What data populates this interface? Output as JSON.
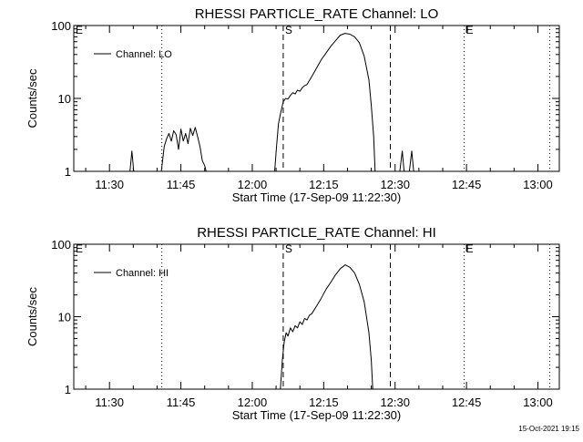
{
  "footer_timestamp": "15-Oct-2021 19:15",
  "chart_data": [
    {
      "type": "line",
      "title": "RHESSI PARTICLE_RATE Channel: LO",
      "xlabel": "Start Time (17-Sep-09 11:22:30)",
      "ylabel": "Counts/sec",
      "x_units": "minutes after 11:22:30",
      "xlim": [
        0,
        102
      ],
      "ylim": [
        1,
        100
      ],
      "y_scale": "log",
      "x_ticks": [
        {
          "x": 7.5,
          "label": "11:30"
        },
        {
          "x": 22.5,
          "label": "11:45"
        },
        {
          "x": 37.5,
          "label": "12:00"
        },
        {
          "x": 52.5,
          "label": "12:15"
        },
        {
          "x": 67.5,
          "label": "12:30"
        },
        {
          "x": 82.5,
          "label": "12:45"
        },
        {
          "x": 97.5,
          "label": "13:00"
        }
      ],
      "y_ticks": [
        {
          "y": 1,
          "label": "1"
        },
        {
          "y": 10,
          "label": "10"
        },
        {
          "y": 100,
          "label": "100"
        }
      ],
      "legend": {
        "entries": [
          "Channel: LO"
        ],
        "position": "top-left"
      },
      "markers": [
        {
          "x": 0,
          "label": "E",
          "style": "dotted"
        },
        {
          "x": 18.5,
          "label": "",
          "style": "dotted"
        },
        {
          "x": 44,
          "label": "S",
          "style": "dashed"
        },
        {
          "x": 66.5,
          "label": "",
          "style": "dashed"
        },
        {
          "x": 82,
          "label": "E",
          "style": "dotted"
        },
        {
          "x": 100,
          "label": "",
          "style": "dotted"
        }
      ],
      "series": [
        {
          "name": "Channel: LO",
          "segments": [
            [
              [
                11.8,
                1
              ],
              [
                12.2,
                1.9
              ],
              [
                12.6,
                1
              ]
            ],
            [
              [
                18.4,
                1
              ],
              [
                19,
                2.2
              ],
              [
                19.5,
                2.8
              ],
              [
                20,
                3.3
              ],
              [
                20.5,
                2.6
              ],
              [
                21,
                3.6
              ],
              [
                21.5,
                3.2
              ],
              [
                22,
                2
              ],
              [
                22.5,
                3.8
              ],
              [
                23,
                2.6
              ],
              [
                23.5,
                3.3
              ],
              [
                24,
                2.4
              ],
              [
                24.5,
                3.9
              ],
              [
                25,
                3.1
              ],
              [
                25.5,
                4
              ],
              [
                26,
                3
              ],
              [
                26.5,
                2.2
              ],
              [
                27,
                1.4
              ],
              [
                27.5,
                1.2
              ],
              [
                27.8,
                1
              ]
            ],
            [
              [
                42.2,
                1
              ],
              [
                42.6,
                2.2
              ],
              [
                43,
                4.5
              ],
              [
                43.5,
                6.5
              ],
              [
                44,
                9
              ],
              [
                44.5,
                10
              ],
              [
                45,
                9.8
              ],
              [
                45.5,
                11
              ],
              [
                46,
                12
              ],
              [
                46.5,
                11.5
              ],
              [
                47,
                13
              ],
              [
                47.5,
                12.5
              ],
              [
                48,
                14
              ],
              [
                48.5,
                15
              ],
              [
                49,
                15.5
              ],
              [
                50,
                20
              ],
              [
                51,
                26
              ],
              [
                52,
                34
              ],
              [
                53,
                42
              ],
              [
                54,
                52
              ],
              [
                55,
                62
              ],
              [
                56,
                74
              ],
              [
                57,
                78
              ],
              [
                58,
                76
              ],
              [
                59,
                70
              ],
              [
                60,
                58
              ],
              [
                61,
                38
              ],
              [
                62,
                18
              ],
              [
                62.5,
                8
              ],
              [
                63,
                3
              ],
              [
                63.3,
                1
              ]
            ],
            [
              [
                68.5,
                1
              ],
              [
                69,
                1.9
              ],
              [
                69.4,
                1
              ]
            ],
            [
              [
                70.5,
                1
              ],
              [
                71,
                1.9
              ],
              [
                71.4,
                1
              ]
            ]
          ]
        }
      ]
    },
    {
      "type": "line",
      "title": "RHESSI PARTICLE_RATE Channel: HI",
      "xlabel": "Start Time (17-Sep-09 11:22:30)",
      "ylabel": "Counts/sec",
      "x_units": "minutes after 11:22:30",
      "xlim": [
        0,
        102
      ],
      "ylim": [
        1,
        100
      ],
      "y_scale": "log",
      "x_ticks": [
        {
          "x": 7.5,
          "label": "11:30"
        },
        {
          "x": 22.5,
          "label": "11:45"
        },
        {
          "x": 37.5,
          "label": "12:00"
        },
        {
          "x": 52.5,
          "label": "12:15"
        },
        {
          "x": 67.5,
          "label": "12:30"
        },
        {
          "x": 82.5,
          "label": "12:45"
        },
        {
          "x": 97.5,
          "label": "13:00"
        }
      ],
      "y_ticks": [
        {
          "y": 1,
          "label": "1"
        },
        {
          "y": 10,
          "label": "10"
        },
        {
          "y": 100,
          "label": "100"
        }
      ],
      "legend": {
        "entries": [
          "Channel: HI"
        ],
        "position": "top-left"
      },
      "markers": [
        {
          "x": 0,
          "label": "E",
          "style": "dotted"
        },
        {
          "x": 18.5,
          "label": "",
          "style": "dotted"
        },
        {
          "x": 44,
          "label": "S",
          "style": "dashed"
        },
        {
          "x": 66.5,
          "label": "",
          "style": "dashed"
        },
        {
          "x": 82,
          "label": "E",
          "style": "dotted"
        },
        {
          "x": 100,
          "label": "",
          "style": "dotted"
        }
      ],
      "series": [
        {
          "name": "Channel: HI",
          "segments": [
            [
              [
                43.4,
                1
              ],
              [
                43.8,
                2.5
              ],
              [
                44.2,
                4.5
              ],
              [
                44.6,
                6
              ],
              [
                45,
                5.4
              ],
              [
                45.5,
                7
              ],
              [
                46,
                6.2
              ],
              [
                46.5,
                7.5
              ],
              [
                47,
                7
              ],
              [
                47.5,
                8.5
              ],
              [
                48,
                7.8
              ],
              [
                48.5,
                9.5
              ],
              [
                49,
                9
              ],
              [
                49.5,
                10.5
              ],
              [
                50,
                11
              ],
              [
                51,
                14
              ],
              [
                52,
                18
              ],
              [
                53,
                24
              ],
              [
                54,
                30
              ],
              [
                55,
                38
              ],
              [
                56,
                46
              ],
              [
                57,
                52
              ],
              [
                58,
                48
              ],
              [
                59,
                40
              ],
              [
                60,
                28
              ],
              [
                61,
                16
              ],
              [
                62,
                6
              ],
              [
                62.5,
                2.5
              ],
              [
                62.8,
                1
              ]
            ]
          ]
        }
      ]
    }
  ]
}
